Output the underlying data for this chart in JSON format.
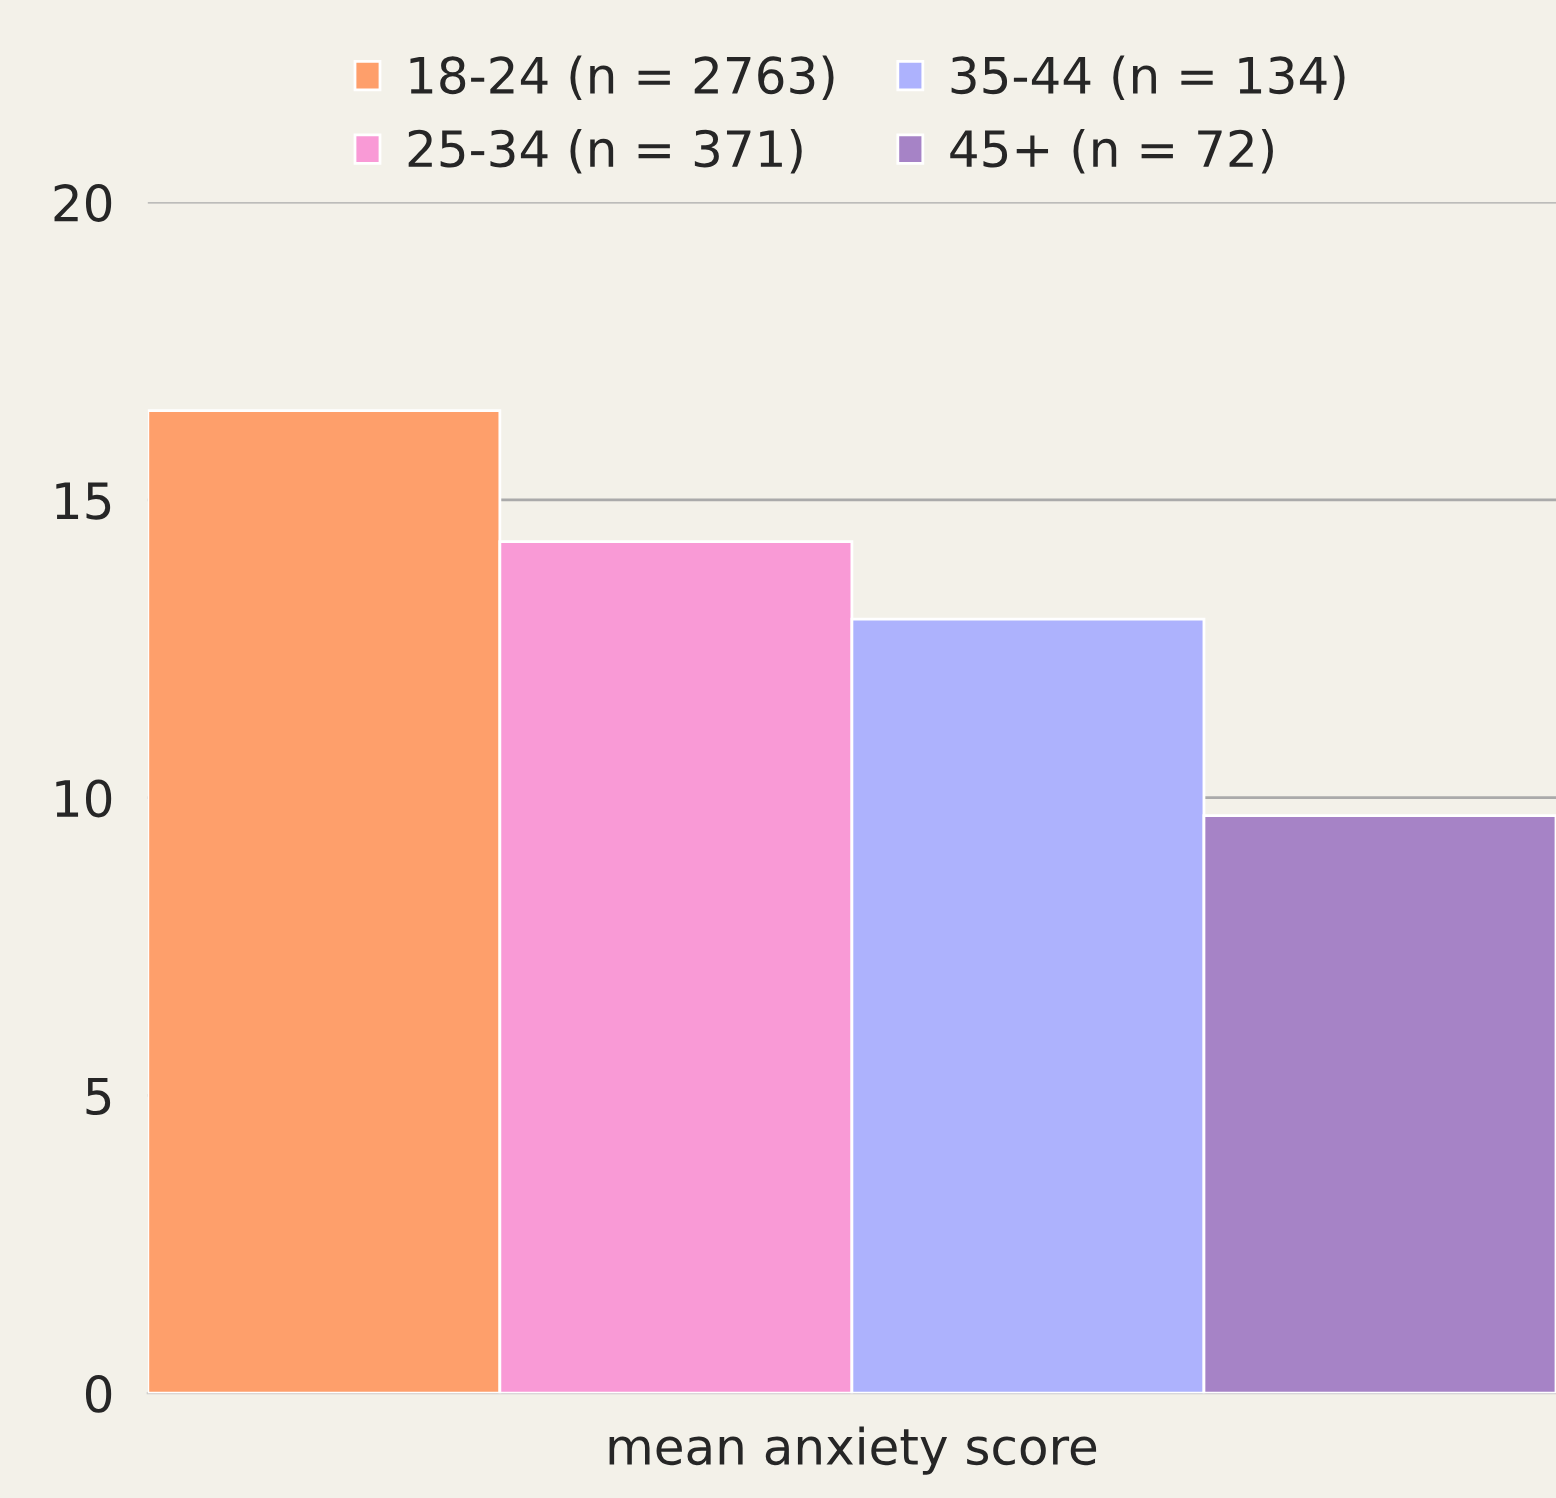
{
  "chart_data": {
    "type": "bar",
    "categories": [
      "mean anxiety score"
    ],
    "series": [
      {
        "name": "18-24 (n = 2763)",
        "color": "#fe9f6b",
        "values": [
          16.5
        ]
      },
      {
        "name": "25-34 (n = 371)",
        "color": "#f99ad6",
        "values": [
          14.3
        ]
      },
      {
        "name": "35-44 (n = 134)",
        "color": "#adb2fd",
        "values": [
          13.0
        ]
      },
      {
        "name": "45+ (n = 72)",
        "color": "#a683c6",
        "values": [
          9.7
        ]
      }
    ],
    "ylim": [
      0,
      20
    ],
    "yticks": [
      0,
      5,
      10,
      15,
      20
    ],
    "grid": "y",
    "legend": "top"
  }
}
